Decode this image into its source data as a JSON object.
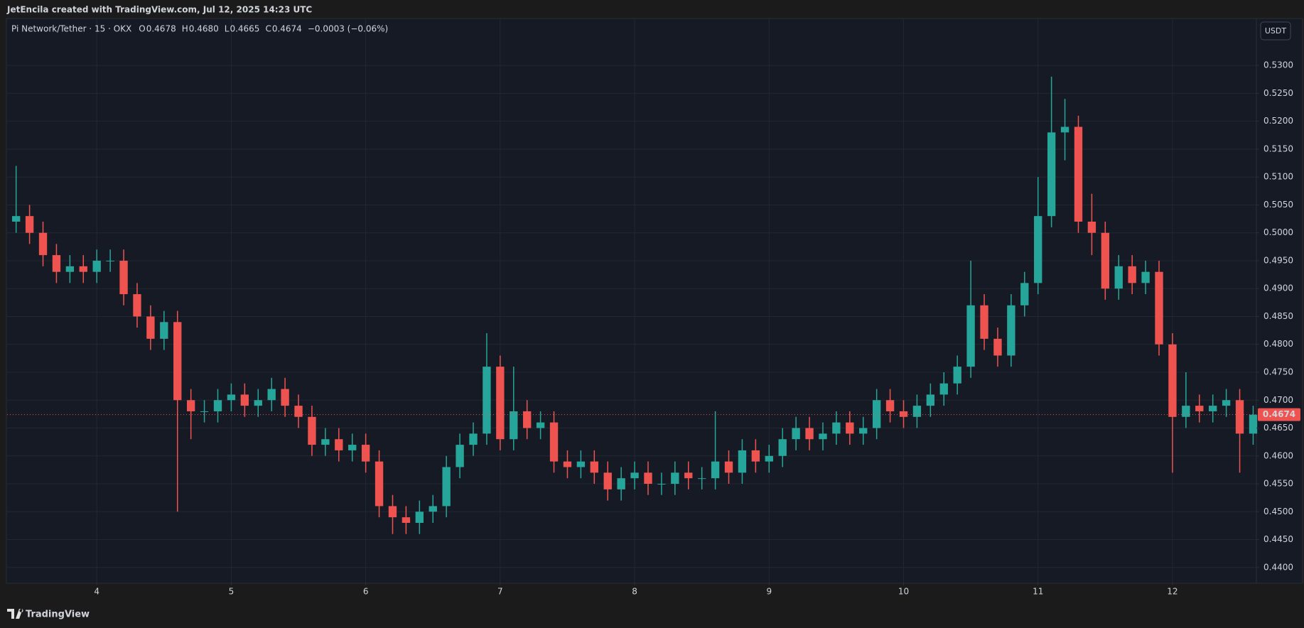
{
  "header": {
    "text": "JetEncila created with TradingView.com, Jul 12, 2025 14:23 UTC"
  },
  "legend": {
    "symbol": "Pi Network/Tether · 15 · OKX",
    "ohlc": [
      {
        "key": "O",
        "value": "0.4678"
      },
      {
        "key": "H",
        "value": "0.4680"
      },
      {
        "key": "L",
        "value": "0.4665"
      },
      {
        "key": "C",
        "value": "0.4674"
      }
    ],
    "change": "−0.0003 (−0.06%)"
  },
  "currency_button": "USDT",
  "footer": {
    "brand": "TradingView"
  },
  "chart_data": {
    "type": "candlestick",
    "up_color": "#26a69a",
    "down_color": "#ef5350",
    "x": [
      3.4,
      3.5,
      3.6,
      3.7,
      3.8,
      3.9,
      4.0,
      4.1,
      4.2,
      4.3,
      4.4,
      4.5,
      4.6,
      4.7,
      4.8,
      4.9,
      5.0,
      5.1,
      5.2,
      5.3,
      5.4,
      5.5,
      5.6,
      5.7,
      5.8,
      5.9,
      6.0,
      6.1,
      6.2,
      6.3,
      6.4,
      6.5,
      6.6,
      6.7,
      6.8,
      6.9,
      7.0,
      7.1,
      7.2,
      7.3,
      7.4,
      7.5,
      7.6,
      7.7,
      7.8,
      7.9,
      8.0,
      8.1,
      8.2,
      8.3,
      8.4,
      8.5,
      8.6,
      8.7,
      8.8,
      8.9,
      9.0,
      9.1,
      9.2,
      9.3,
      9.4,
      9.5,
      9.6,
      9.7,
      9.8,
      9.9,
      10.0,
      10.1,
      10.2,
      10.3,
      10.4,
      10.5,
      10.6,
      10.7,
      10.8,
      10.9,
      11.0,
      11.1,
      11.2,
      11.3,
      11.4,
      11.5,
      11.6,
      11.7,
      11.8,
      11.9,
      12.0,
      12.1,
      12.2,
      12.3,
      12.4,
      12.5,
      12.6
    ],
    "open": [
      0.502,
      0.503,
      0.5,
      0.496,
      0.493,
      0.494,
      0.493,
      0.495,
      0.495,
      0.489,
      0.485,
      0.481,
      0.484,
      0.47,
      0.468,
      0.468,
      0.47,
      0.471,
      0.469,
      0.47,
      0.472,
      0.469,
      0.467,
      0.462,
      0.463,
      0.461,
      0.462,
      0.459,
      0.451,
      0.449,
      0.448,
      0.45,
      0.451,
      0.458,
      0.462,
      0.464,
      0.476,
      0.463,
      0.468,
      0.465,
      0.466,
      0.459,
      0.458,
      0.459,
      0.457,
      0.454,
      0.456,
      0.457,
      0.455,
      0.455,
      0.457,
      0.456,
      0.456,
      0.459,
      0.457,
      0.461,
      0.459,
      0.46,
      0.463,
      0.465,
      0.463,
      0.464,
      0.466,
      0.464,
      0.465,
      0.47,
      0.468,
      0.467,
      0.469,
      0.471,
      0.473,
      0.476,
      0.487,
      0.481,
      0.478,
      0.487,
      0.491,
      0.503,
      0.518,
      0.519,
      0.502,
      0.5,
      0.49,
      0.494,
      0.491,
      0.493,
      0.48,
      0.467,
      0.469,
      0.468,
      0.469,
      0.47,
      0.464
    ],
    "high": [
      0.512,
      0.505,
      0.502,
      0.498,
      0.496,
      0.496,
      0.497,
      0.497,
      0.497,
      0.491,
      0.487,
      0.486,
      0.486,
      0.472,
      0.47,
      0.472,
      0.473,
      0.473,
      0.472,
      0.474,
      0.474,
      0.471,
      0.469,
      0.465,
      0.465,
      0.464,
      0.464,
      0.461,
      0.453,
      0.451,
      0.452,
      0.453,
      0.46,
      0.464,
      0.466,
      0.482,
      0.478,
      0.476,
      0.47,
      0.468,
      0.468,
      0.461,
      0.461,
      0.461,
      0.459,
      0.458,
      0.459,
      0.459,
      0.457,
      0.459,
      0.459,
      0.458,
      0.468,
      0.461,
      0.463,
      0.463,
      0.462,
      0.465,
      0.467,
      0.467,
      0.466,
      0.468,
      0.468,
      0.467,
      0.472,
      0.472,
      0.47,
      0.471,
      0.473,
      0.475,
      0.478,
      0.495,
      0.489,
      0.483,
      0.489,
      0.493,
      0.51,
      0.528,
      0.524,
      0.521,
      0.507,
      0.502,
      0.496,
      0.496,
      0.495,
      0.495,
      0.482,
      0.475,
      0.471,
      0.471,
      0.472,
      0.472,
      0.469
    ],
    "low": [
      0.5,
      0.498,
      0.494,
      0.491,
      0.491,
      0.491,
      0.491,
      0.493,
      0.487,
      0.483,
      0.479,
      0.479,
      0.45,
      0.463,
      0.466,
      0.466,
      0.468,
      0.467,
      0.467,
      0.468,
      0.467,
      0.465,
      0.46,
      0.46,
      0.459,
      0.459,
      0.457,
      0.449,
      0.446,
      0.446,
      0.446,
      0.448,
      0.449,
      0.456,
      0.46,
      0.462,
      0.461,
      0.461,
      0.463,
      0.463,
      0.457,
      0.456,
      0.456,
      0.455,
      0.452,
      0.452,
      0.454,
      0.453,
      0.453,
      0.453,
      0.454,
      0.454,
      0.454,
      0.455,
      0.455,
      0.457,
      0.457,
      0.458,
      0.461,
      0.461,
      0.461,
      0.462,
      0.462,
      0.462,
      0.463,
      0.466,
      0.465,
      0.465,
      0.467,
      0.469,
      0.471,
      0.474,
      0.479,
      0.476,
      0.476,
      0.485,
      0.489,
      0.501,
      0.513,
      0.5,
      0.496,
      0.488,
      0.488,
      0.489,
      0.489,
      0.478,
      0.457,
      0.465,
      0.466,
      0.466,
      0.467,
      0.457,
      0.462
    ],
    "close": [
      0.503,
      0.5,
      0.496,
      0.493,
      0.494,
      0.493,
      0.495,
      0.495,
      0.489,
      0.485,
      0.481,
      0.484,
      0.47,
      0.468,
      0.468,
      0.47,
      0.471,
      0.469,
      0.47,
      0.472,
      0.469,
      0.467,
      0.462,
      0.463,
      0.461,
      0.462,
      0.459,
      0.451,
      0.449,
      0.448,
      0.45,
      0.451,
      0.458,
      0.462,
      0.464,
      0.476,
      0.463,
      0.468,
      0.465,
      0.466,
      0.459,
      0.458,
      0.459,
      0.457,
      0.454,
      0.456,
      0.457,
      0.455,
      0.455,
      0.457,
      0.456,
      0.456,
      0.459,
      0.457,
      0.461,
      0.459,
      0.46,
      0.463,
      0.465,
      0.463,
      0.464,
      0.466,
      0.464,
      0.465,
      0.47,
      0.468,
      0.467,
      0.469,
      0.471,
      0.473,
      0.476,
      0.487,
      0.481,
      0.478,
      0.487,
      0.491,
      0.503,
      0.518,
      0.519,
      0.502,
      0.5,
      0.49,
      0.494,
      0.491,
      0.493,
      0.48,
      0.467,
      0.469,
      0.468,
      0.469,
      0.47,
      0.464,
      0.4674
    ],
    "last_price": 0.4674,
    "last_price_color": "#ef5350",
    "xlim": [
      3.333,
      12.624
    ],
    "xticks": [
      4,
      5,
      6,
      7,
      8,
      9,
      10,
      11,
      12
    ],
    "ylim": [
      0.4373,
      0.5383
    ],
    "yticks": [
      {
        "value": 0.44,
        "label": "0.4400"
      },
      {
        "value": 0.445,
        "label": "0.4450"
      },
      {
        "value": 0.45,
        "label": "0.4500"
      },
      {
        "value": 0.455,
        "label": "0.4550"
      },
      {
        "value": 0.46,
        "label": "0.4600"
      },
      {
        "value": 0.465,
        "label": "0.4650"
      },
      {
        "value": 0.47,
        "label": "0.4700"
      },
      {
        "value": 0.475,
        "label": "0.4750"
      },
      {
        "value": 0.48,
        "label": "0.4800"
      },
      {
        "value": 0.485,
        "label": "0.4850"
      },
      {
        "value": 0.49,
        "label": "0.4900"
      },
      {
        "value": 0.495,
        "label": "0.4950"
      },
      {
        "value": 0.5,
        "label": "0.5000"
      },
      {
        "value": 0.505,
        "label": "0.5050"
      },
      {
        "value": 0.51,
        "label": "0.5100"
      },
      {
        "value": 0.515,
        "label": "0.5150"
      },
      {
        "value": 0.52,
        "label": "0.5200"
      },
      {
        "value": 0.525,
        "label": "0.5250"
      },
      {
        "value": 0.53,
        "label": "0.5300"
      }
    ],
    "grid": true
  }
}
